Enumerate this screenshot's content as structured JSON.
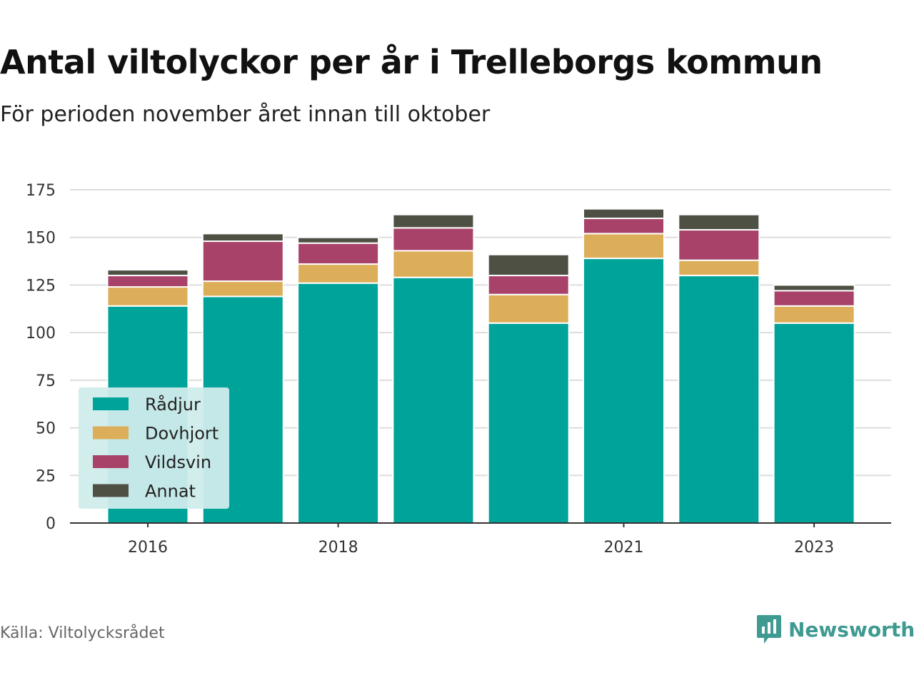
{
  "title": "Antal viltolyckor per år i Trelleborgs kommun",
  "subtitle": "För perioden november året innan till oktober",
  "source": "Källa: Viltolycksrådet",
  "brand": "Newsworthy",
  "colors": {
    "Rådjur": "#00a39a",
    "Dovhjort": "#dcae59",
    "Vildsvin": "#a84268",
    "Annat": "#4f5044",
    "grid": "#dddddd",
    "axis": "#333333",
    "legend_bg": "#cfeceb",
    "brand": "#3f9a91"
  },
  "chart_data": {
    "type": "bar",
    "stacked": true,
    "categories": [
      "2016",
      "2017",
      "2018",
      "2019",
      "2020",
      "2021",
      "2022",
      "2023"
    ],
    "x_tick_labels": [
      "2016",
      "2018",
      "2021",
      "2023"
    ],
    "series": [
      {
        "name": "Rådjur",
        "values": [
          114,
          119,
          126,
          129,
          105,
          139,
          130,
          105
        ]
      },
      {
        "name": "Dovhjort",
        "values": [
          10,
          8,
          10,
          14,
          15,
          13,
          8,
          9
        ]
      },
      {
        "name": "Vildsvin",
        "values": [
          6,
          21,
          11,
          12,
          10,
          8,
          16,
          8
        ]
      },
      {
        "name": "Annat",
        "values": [
          3,
          4,
          3,
          7,
          11,
          5,
          8,
          3
        ]
      }
    ],
    "ylim": [
      0,
      175
    ],
    "yticks": [
      0,
      25,
      50,
      75,
      100,
      125,
      150,
      175
    ],
    "grid": true,
    "legend_position": "bottom-left"
  }
}
